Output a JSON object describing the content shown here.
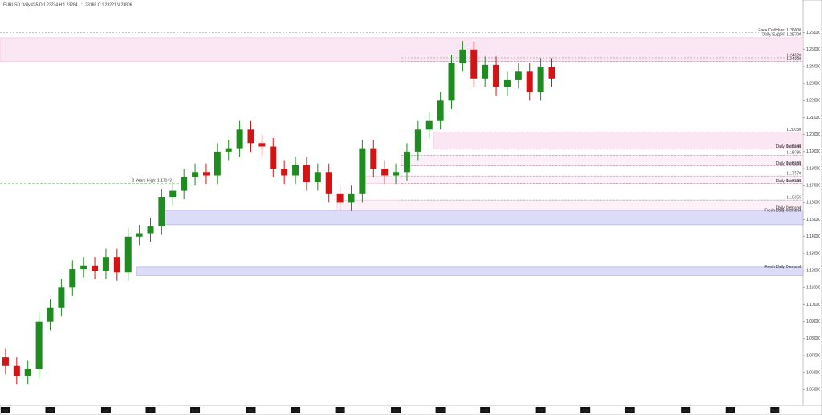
{
  "chart_data": {
    "type": "candlestick",
    "title": "EURUSD  Daily  #35  O:1.23234  H:1.23284  L:1.23169  C:1.23221  V:23806",
    "categories": [
      "Apr",
      null,
      null,
      null,
      "May",
      null,
      null,
      null,
      null,
      "Jun",
      null,
      null,
      null,
      "Jul",
      null,
      null,
      null,
      "Aug",
      null,
      null,
      null,
      null,
      "Sep",
      null,
      null,
      null,
      "Oct",
      null,
      null,
      null,
      "Nov",
      null,
      null,
      null,
      null,
      "Dec",
      null,
      null,
      null,
      "2018",
      null,
      null,
      null,
      "Feb",
      null,
      null,
      null,
      null,
      "Mar",
      null,
      null,
      null,
      "Apr",
      null,
      null,
      null,
      "May",
      null,
      null,
      null,
      null,
      "Jun",
      null,
      null,
      null,
      "Jul",
      null,
      null,
      null,
      "Aug",
      null,
      null
    ],
    "open": [
      1.069,
      1.064,
      1.058,
      1.062,
      1.09,
      1.098,
      1.11,
      1.121,
      1.123,
      1.12,
      1.128,
      1.119,
      1.14,
      1.142,
      1.146,
      1.163,
      1.167,
      1.175,
      1.178,
      1.176,
      1.19,
      1.192,
      1.203,
      1.195,
      1.193,
      1.18,
      1.176,
      1.182,
      1.172,
      1.178,
      1.165,
      1.16,
      1.165,
      1.192,
      1.18,
      1.176,
      1.178,
      1.19,
      1.203,
      1.208,
      1.22,
      1.242,
      1.25,
      1.233,
      1.241,
      1.228,
      1.232,
      1.237,
      1.225,
      1.24,
      null,
      null,
      null,
      null,
      null,
      null,
      null,
      null,
      null,
      null,
      null,
      null,
      null,
      null,
      null,
      null,
      null,
      null,
      null,
      null,
      null,
      null
    ],
    "high": [
      1.074,
      1.069,
      1.067,
      1.095,
      1.103,
      1.115,
      1.126,
      1.128,
      1.128,
      1.133,
      1.133,
      1.145,
      1.147,
      1.151,
      1.168,
      1.172,
      1.18,
      1.183,
      1.183,
      1.195,
      1.197,
      1.208,
      1.208,
      1.2,
      1.198,
      1.185,
      1.187,
      1.187,
      1.183,
      1.183,
      1.17,
      1.17,
      1.197,
      1.197,
      1.185,
      1.183,
      1.195,
      1.208,
      1.213,
      1.225,
      1.247,
      1.255,
      1.255,
      1.246,
      1.246,
      1.237,
      1.242,
      1.242,
      1.245,
      1.245,
      null,
      null,
      null,
      null,
      null,
      null,
      null,
      null,
      null,
      null,
      null,
      null,
      null,
      null,
      null,
      null,
      null,
      null,
      null,
      null,
      null,
      null
    ],
    "low": [
      1.059,
      1.053,
      1.053,
      1.057,
      1.085,
      1.093,
      1.105,
      1.116,
      1.115,
      1.115,
      1.114,
      1.114,
      1.135,
      1.137,
      1.141,
      1.158,
      1.162,
      1.17,
      1.171,
      1.171,
      1.185,
      1.187,
      1.19,
      1.188,
      1.175,
      1.171,
      1.171,
      1.167,
      1.167,
      1.16,
      1.155,
      1.155,
      1.16,
      1.175,
      1.171,
      1.171,
      1.173,
      1.185,
      1.198,
      1.203,
      1.215,
      1.237,
      1.228,
      1.228,
      1.223,
      1.223,
      1.227,
      1.22,
      1.22,
      1.228,
      null,
      null,
      null,
      null,
      null,
      null,
      null,
      null,
      null,
      null,
      null,
      null,
      null,
      null,
      null,
      null,
      null,
      null,
      null,
      null,
      null,
      null
    ],
    "close": [
      1.064,
      1.058,
      1.062,
      1.09,
      1.098,
      1.11,
      1.121,
      1.123,
      1.12,
      1.128,
      1.119,
      1.14,
      1.142,
      1.146,
      1.163,
      1.167,
      1.175,
      1.178,
      1.176,
      1.19,
      1.192,
      1.203,
      1.195,
      1.193,
      1.18,
      1.176,
      1.182,
      1.172,
      1.178,
      1.165,
      1.16,
      1.165,
      1.192,
      1.18,
      1.176,
      1.178,
      1.19,
      1.203,
      1.208,
      1.22,
      1.242,
      1.25,
      1.233,
      1.241,
      1.228,
      1.232,
      1.237,
      1.225,
      1.24,
      1.233,
      null,
      null,
      null,
      null,
      null,
      null,
      null,
      null,
      null,
      null,
      null,
      null,
      null,
      null,
      null,
      null,
      null,
      null,
      null,
      null,
      null,
      null
    ],
    "up_color": "#1e8c1e",
    "down_color": "#d41414",
    "ylim": [
      1.045,
      1.265
    ],
    "yticks": [
      {
        "value": 1.05,
        "label": "1.05000"
      },
      {
        "value": 1.06,
        "label": "1.06000"
      },
      {
        "value": 1.07,
        "label": "1.07000"
      },
      {
        "value": 1.08,
        "label": "1.08000"
      },
      {
        "value": 1.09,
        "label": "1.09000"
      },
      {
        "value": 1.1,
        "label": "1.10000"
      },
      {
        "value": 1.11,
        "label": "1.11000"
      },
      {
        "value": 1.12,
        "label": "1.12000"
      },
      {
        "value": 1.13,
        "label": "1.13000"
      },
      {
        "value": 1.14,
        "label": "1.14000"
      },
      {
        "value": 1.15,
        "label": "1.15000"
      },
      {
        "value": 1.16,
        "label": "1.16000"
      },
      {
        "value": 1.17,
        "label": "1.17000"
      },
      {
        "value": 1.18,
        "label": "1.18000"
      },
      {
        "value": 1.19,
        "label": "1.19000"
      },
      {
        "value": 1.2,
        "label": "1.20000"
      },
      {
        "value": 1.21,
        "label": "1.21000"
      },
      {
        "value": 1.22,
        "label": "1.22000"
      },
      {
        "value": 1.23,
        "label": "1.23000"
      },
      {
        "value": 1.24,
        "label": "1.24000"
      },
      {
        "value": 1.25,
        "label": "1.25000"
      },
      {
        "value": 1.26,
        "label": "1.26000"
      }
    ],
    "levels": [
      {
        "value": 1.26,
        "label": "Fake Out Here: 1.26000"
      },
      {
        "value": 1.2452,
        "label": "1.24520"
      },
      {
        "value": 1.243,
        "label": "1.24300"
      },
      {
        "value": 1.2015,
        "label": "1.20150"
      },
      {
        "value": 1.19145,
        "label": "1.19145"
      },
      {
        "value": 1.18795,
        "label": "1.18795"
      },
      {
        "value": 1.18165,
        "label": "1.18165"
      },
      {
        "value": 1.1757,
        "label": "1.17570"
      },
      {
        "value": 1.17125,
        "label": "1.17125"
      },
      {
        "value": 1.16155,
        "label": "1.16155"
      }
    ],
    "zones": [
      {
        "from": 1.243,
        "to": 1.257,
        "label": "Daily Supply: 1.25700",
        "color": "#fbe6f3"
      },
      {
        "from": 1.19145,
        "to": 1.2015,
        "label": "Daily Demand",
        "color": "#fbe6f3"
      },
      {
        "from": 1.18165,
        "to": 1.18795,
        "label": "Daily Demand",
        "color": "#fdf0f8"
      },
      {
        "from": 1.17125,
        "to": 1.1757,
        "label": "Daily Demand",
        "color": "#fdf0f8"
      },
      {
        "from": 1.1555,
        "to": 1.16155,
        "label": "Daily Demand",
        "color": "#fdf0f8"
      },
      {
        "from": 1.147,
        "to": 1.1555,
        "label": "Fresh Daily Demand",
        "color": "#dcdcf8"
      },
      {
        "from": 1.117,
        "to": 1.122,
        "label": "Fresh Daily Demand",
        "color": "#dcdcf8"
      }
    ],
    "annotation": {
      "value": 1.1714,
      "label": "2-Years High: 1.17143"
    }
  }
}
